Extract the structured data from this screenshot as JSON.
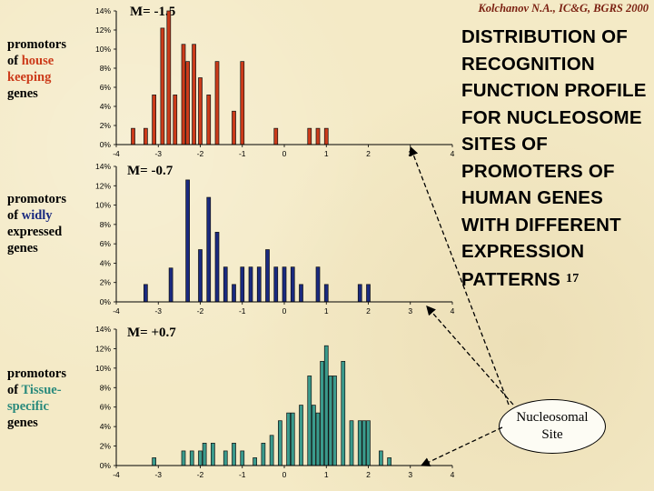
{
  "header": {
    "credit": "Kolchanov N.A., IC&G, BGRS 2000",
    "title": "DISTRIBUTION OF RECOGNITION FUNCTION PROFILE FOR NUCLEOSOME SITES OF PROMOTERS OF HUMAN GENES WITH DIFFERENT EXPRESSION PATTERNS",
    "slide_number": "17"
  },
  "callout": {
    "text": "Nucleosomal Site"
  },
  "colors": {
    "housekeeping": "#cc3b1a",
    "widely": "#1a2a80",
    "tissue": "#3a9a8c",
    "background": "#f4eac6"
  },
  "chart_data": [
    {
      "type": "bar",
      "row_label_pre": "promotors of",
      "row_label_highlight": "house keeping",
      "row_label_post": "genes",
      "mean_label": "M= -1.5",
      "color": "#cc3b1a",
      "x": [
        -3.6,
        -3.3,
        -3.1,
        -2.9,
        -2.75,
        -2.6,
        -2.4,
        -2.3,
        -2.15,
        -2.0,
        -1.8,
        -1.6,
        -1.2,
        -1.0,
        -0.2,
        0.6,
        0.8,
        1.0
      ],
      "values": [
        0.017,
        0.017,
        0.052,
        0.122,
        0.14,
        0.052,
        0.105,
        0.087,
        0.105,
        0.07,
        0.052,
        0.087,
        0.035,
        0.087,
        0.017,
        0.017,
        0.017,
        0.017
      ],
      "xlim": [
        -4,
        4
      ],
      "ylim": [
        0,
        0.14
      ],
      "xticks": [
        "-4",
        "-3",
        "-2",
        "-1",
        "0",
        "1",
        "2",
        "3",
        "4"
      ],
      "yticks": [
        "0%",
        "2%",
        "4%",
        "6%",
        "8%",
        "10%",
        "12%",
        "14%"
      ]
    },
    {
      "type": "bar",
      "row_label_pre": "promotors of",
      "row_label_highlight": "widly",
      "row_label_post": "expressed genes",
      "mean_label": "M= -0.7",
      "color": "#1a2a80",
      "x": [
        -3.3,
        -2.7,
        -2.3,
        -2.0,
        -1.8,
        -1.6,
        -1.4,
        -1.2,
        -1.0,
        -0.8,
        -0.6,
        -0.4,
        -0.2,
        0.0,
        0.2,
        0.4,
        0.8,
        1.0,
        1.8,
        2.0
      ],
      "values": [
        0.018,
        0.035,
        0.126,
        0.054,
        0.108,
        0.072,
        0.036,
        0.018,
        0.036,
        0.036,
        0.036,
        0.054,
        0.036,
        0.036,
        0.036,
        0.018,
        0.036,
        0.018,
        0.018,
        0.018
      ],
      "xlim": [
        -4,
        4
      ],
      "ylim": [
        0,
        0.14
      ],
      "xticks": [
        "-4",
        "-3",
        "-2",
        "-1",
        "0",
        "1",
        "2",
        "3",
        "4"
      ],
      "yticks": [
        "0%",
        "2%",
        "4%",
        "6%",
        "8%",
        "10%",
        "12%",
        "14%"
      ]
    },
    {
      "type": "bar",
      "row_label_pre": "promotors of",
      "row_label_highlight": "Tissue-specific",
      "row_label_post": "genes",
      "mean_label": "M= +0.7",
      "color": "#3a9a8c",
      "x": [
        -3.1,
        -2.4,
        -2.2,
        -2.0,
        -1.9,
        -1.7,
        -1.4,
        -1.2,
        -1.0,
        -0.7,
        -0.5,
        -0.3,
        -0.1,
        0.1,
        0.2,
        0.4,
        0.6,
        0.7,
        0.8,
        0.9,
        1.0,
        1.1,
        1.2,
        1.4,
        1.6,
        1.8,
        1.9,
        2.0,
        2.3,
        2.5
      ],
      "values": [
        0.008,
        0.015,
        0.015,
        0.015,
        0.023,
        0.023,
        0.015,
        0.023,
        0.015,
        0.008,
        0.023,
        0.031,
        0.046,
        0.054,
        0.054,
        0.062,
        0.092,
        0.062,
        0.054,
        0.107,
        0.123,
        0.092,
        0.092,
        0.107,
        0.046,
        0.046,
        0.046,
        0.046,
        0.015,
        0.008
      ],
      "xlim": [
        -4,
        4
      ],
      "ylim": [
        0,
        0.14
      ],
      "xticks": [
        "-4",
        "-3",
        "-2",
        "-1",
        "0",
        "1",
        "2",
        "3",
        "4"
      ],
      "yticks": [
        "0%",
        "2%",
        "4%",
        "6%",
        "8%",
        "10%",
        "12%",
        "14%"
      ]
    }
  ]
}
